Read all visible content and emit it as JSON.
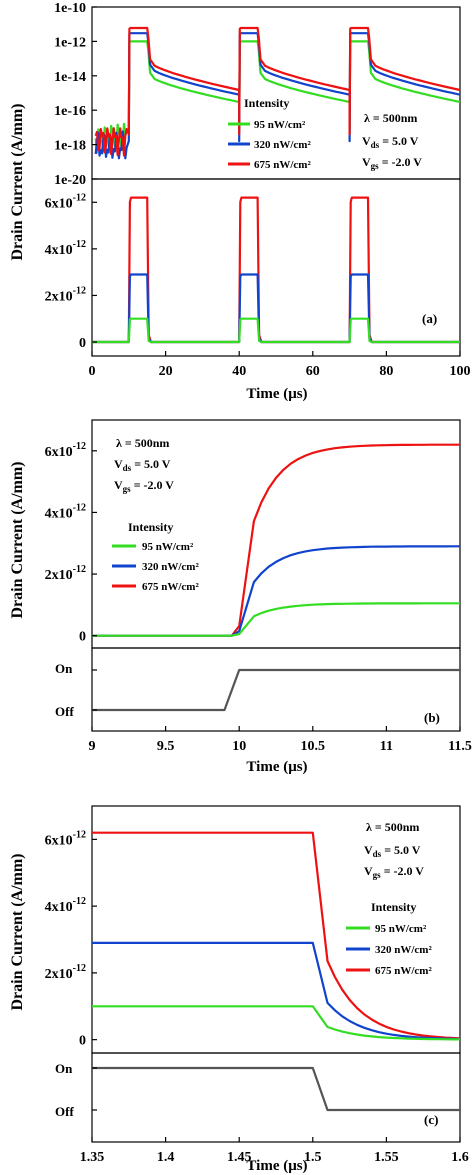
{
  "colors": {
    "green": "#33dd22",
    "blue": "#1144cc",
    "red": "#ee1111",
    "gate": "#555555"
  },
  "labels": {
    "ylabel": "Drain Current (A/mm)",
    "xlabel_a": "Time (μs)",
    "xlabel_b": "Time (μs)",
    "xlabel_c": "Time (μs)",
    "panel_a": "(a)",
    "panel_b": "(b)",
    "panel_c": "(c)",
    "intensity": "Intensity",
    "legend_green": "95 nW/cm²",
    "legend_blue": "320 nW/cm²",
    "legend_red": "675 nW/cm²",
    "lambda": "λ = 500nm",
    "vds": "V",
    "vds_sub": "ds",
    "vds_val": " = 5.0 V",
    "vgs": "V",
    "vgs_sub": "gs",
    "vgs_val": " = -2.0 V",
    "on": "On",
    "off": "Off"
  },
  "chart_data": [
    {
      "id": "a_log",
      "type": "line",
      "yscale": "log",
      "xlim": [
        0,
        100
      ],
      "ylim": [
        1e-20,
        1e-10
      ],
      "yticks": [
        "1e-10",
        "1e-12",
        "1e-14",
        "1e-16",
        "1e-18",
        "1e-20"
      ],
      "pulses": [
        [
          10,
          15
        ],
        [
          40,
          45
        ],
        [
          70,
          75
        ]
      ],
      "series": [
        {
          "name": "95 nW/cm²",
          "color": "green",
          "on_value": 1e-12,
          "tail_start": 1e-14,
          "tail_end": 3e-16,
          "dark": 3e-18
        },
        {
          "name": "320 nW/cm²",
          "color": "blue",
          "on_value": 3e-12,
          "tail_start": 3e-14,
          "tail_end": 8e-16,
          "dark": 8e-19
        },
        {
          "name": "675 nW/cm²",
          "color": "red",
          "on_value": 6e-12,
          "tail_start": 6e-14,
          "tail_end": 1.5e-15,
          "dark": 2e-18
        }
      ]
    },
    {
      "id": "a_lin",
      "type": "line",
      "xlabel": "Time (μs)",
      "xlim": [
        0,
        100
      ],
      "xticks": [
        "0",
        "20",
        "40",
        "60",
        "80",
        "100"
      ],
      "ylim": [
        -0.6,
        7
      ],
      "yticks": [
        {
          "v": 6,
          "base": "6x10",
          "exp": "-12"
        },
        {
          "v": 4,
          "base": "4x10",
          "exp": "-12"
        },
        {
          "v": 2,
          "base": "2x10",
          "exp": "-12"
        },
        {
          "v": 0,
          "base": "0",
          "exp": ""
        }
      ],
      "pulses": [
        [
          10,
          15
        ],
        [
          40,
          45
        ],
        [
          70,
          75
        ]
      ],
      "series": [
        {
          "name": "95 nW/cm²",
          "color": "green",
          "on_value": 1.0
        },
        {
          "name": "320 nW/cm²",
          "color": "blue",
          "on_value": 2.9
        },
        {
          "name": "675 nW/cm²",
          "color": "red",
          "on_value": 6.2
        }
      ]
    },
    {
      "id": "b",
      "type": "line",
      "xlim": [
        9,
        11.5
      ],
      "xticks": [
        "9",
        "9.5",
        "10",
        "10.5",
        "11",
        "11.5"
      ],
      "ylim": [
        -0.4,
        7
      ],
      "yticks": [
        {
          "v": 6,
          "base": "6x10",
          "exp": "-12"
        },
        {
          "v": 4,
          "base": "4x10",
          "exp": "-12"
        },
        {
          "v": 2,
          "base": "2x10",
          "exp": "-12"
        },
        {
          "v": 0,
          "base": "0",
          "exp": ""
        }
      ],
      "rise_start": 10.0,
      "series": [
        {
          "name": "95 nW/cm²",
          "color": "green",
          "final": 1.05
        },
        {
          "name": "320 nW/cm²",
          "color": "blue",
          "final": 2.9
        },
        {
          "name": "675 nW/cm²",
          "color": "red",
          "final": 6.2
        }
      ],
      "gate": {
        "x": [
          9,
          9.9,
          10.0,
          11.5
        ],
        "state": [
          "off",
          "off",
          "on",
          "on"
        ]
      }
    },
    {
      "id": "c",
      "type": "line",
      "xlim": [
        1.35,
        1.6
      ],
      "xticks": [
        "1.35",
        "1.4",
        "1.45",
        "1.5",
        "1.55",
        "1.6"
      ],
      "ylim": [
        -0.4,
        7
      ],
      "yticks": [
        {
          "v": 6,
          "base": "6x10",
          "exp": "-12"
        },
        {
          "v": 4,
          "base": "4x10",
          "exp": "-12"
        },
        {
          "v": 2,
          "base": "2x10",
          "exp": "-12"
        },
        {
          "v": 0,
          "base": "0",
          "exp": ""
        }
      ],
      "fall_start": 1.5,
      "series": [
        {
          "name": "95 nW/cm²",
          "color": "green",
          "initial": 1.0
        },
        {
          "name": "320 nW/cm²",
          "color": "blue",
          "initial": 2.9
        },
        {
          "name": "675 nW/cm²",
          "color": "red",
          "initial": 6.2
        }
      ],
      "gate": {
        "x": [
          1.35,
          1.5,
          1.51,
          1.6
        ],
        "state": [
          "on",
          "on",
          "off",
          "off"
        ]
      }
    }
  ]
}
